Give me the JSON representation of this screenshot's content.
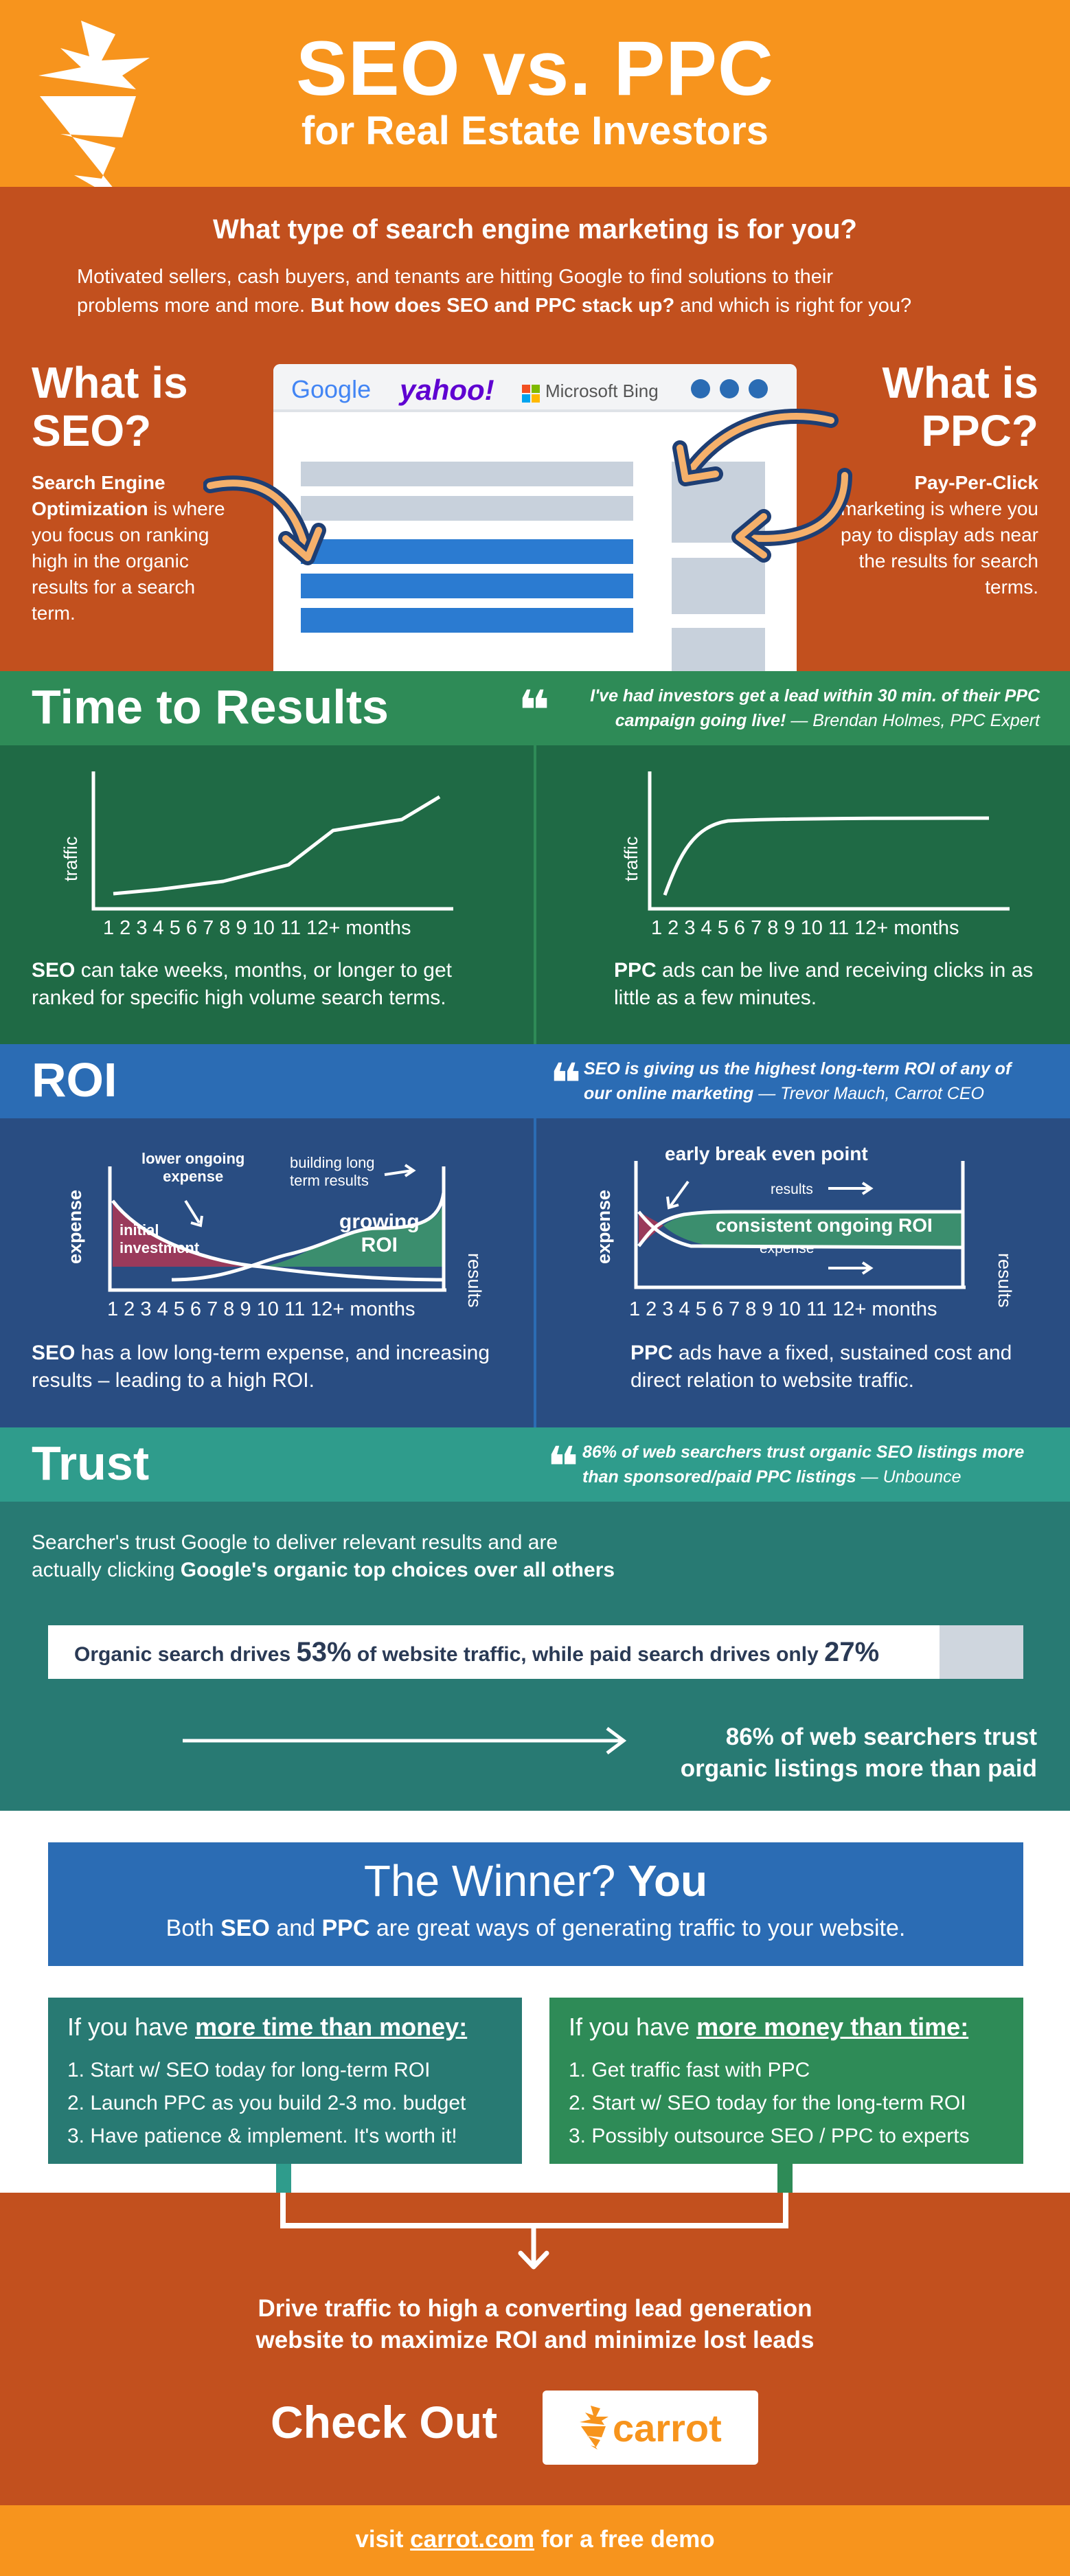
{
  "header": {
    "title": "SEO vs. PPC",
    "subtitle": "for Real Estate Investors"
  },
  "intro": {
    "question": "What type of search engine marketing is for you?",
    "body_line1": "Motivated sellers, cash buyers, and tenants are hitting Google to find solutions to their",
    "body_line2_a": "problems more and more. ",
    "body_line2_b": "But how does SEO and PPC stack up?",
    "body_line2_c": " and which is right for you?"
  },
  "seo_def": {
    "title_line1": "What is",
    "title_line2": "SEO?",
    "bold": "Search Engine Optimization",
    "text": " is where you focus on ranking high in the organic results for a search term."
  },
  "ppc_def": {
    "title_line1": "What is",
    "title_line2": "PPC?",
    "bold": "Pay-Per-Click",
    "text": " marketing is where you pay to display ads near the results for search terms."
  },
  "browser": {
    "engines": [
      "Google",
      "yahoo!",
      "Microsoft Bing"
    ]
  },
  "time": {
    "title": "Time to Results",
    "quote": "I've had investors get a lead within 30 min. of their PPC campaign going live!",
    "quote_author": "— Brendan Holmes, PPC Expert",
    "left": {
      "ylabel": "traffic",
      "ticks": "1 2 3 4 5 6 7 8 9 10 11 12+ months",
      "caption_bold": "SEO",
      "caption": " can take weeks, months, or longer to get ranked for specific high volume search terms."
    },
    "right": {
      "ylabel": "traffic",
      "ticks": "1 2 3 4 5 6 7 8 9 10 11 12+ months",
      "caption_bold": "PPC",
      "caption": " ads can be live and receiving clicks in as little as a few minutes."
    }
  },
  "roi": {
    "title": "ROI",
    "quote": "SEO is giving us the highest long-term ROI of any of our online marketing",
    "quote_author": "— Trevor Mauch, Carrot CEO",
    "left": {
      "ylabel": "expense",
      "y2label": "results",
      "ann_lower": [
        "lower ongoing",
        "expense"
      ],
      "ann_build": [
        "building long",
        "term results"
      ],
      "initial": [
        "initial",
        "investment"
      ],
      "growing": [
        "growing",
        "ROI"
      ],
      "ticks": "1 2 3 4 5 6 7 8 9 10 11 12+ months",
      "caption_bold": "SEO",
      "caption": " has a low long-term expense, and increasing results – leading to a high ROI."
    },
    "right": {
      "ylabel": "expense",
      "y2label": "results",
      "ann_break": "early break even point",
      "band": "consistent ongoing ROI",
      "results": "results",
      "expense": "expense",
      "ticks": "1 2 3 4 5 6 7 8 9 10 11 12+ months",
      "caption_bold": "PPC",
      "caption": " ads have a fixed, sustained cost and direct relation to website traffic."
    }
  },
  "trust": {
    "title": "Trust",
    "quote": "86% of web searchers trust organic SEO listings more than sponsored/paid PPC listings",
    "quote_author": "— Unbounce",
    "body_line1": "Searcher's trust Google to deliver relevant results and are",
    "body_line2_a": "actually clicking ",
    "body_line2_b": "Google's organic top choices over all others",
    "stat_a": "Organic search drives ",
    "stat_organic": "53%",
    "stat_b": " of website traffic, while paid search drives only ",
    "stat_paid": "27%",
    "organic_share": 0.53,
    "paid_share": 0.27,
    "arrow_text_line1": "86% of web searchers trust",
    "arrow_text_line2": "organic listings more than paid"
  },
  "winner": {
    "title_a": "The Winner? ",
    "title_b": "You",
    "sub_a": "Both ",
    "sub_seo": "SEO",
    "sub_and": " and ",
    "sub_ppc": "PPC",
    "sub_b": " are great ways of generating traffic to your website.",
    "time_option": {
      "head_a": "If you have ",
      "head_b": "more time than money:",
      "items": [
        "1. Start w/ SEO today for long-term ROI",
        "2. Launch PPC as you build 2-3 mo. budget",
        "3. Have patience & implement. It's worth it!"
      ]
    },
    "money_option": {
      "head_a": "If you have ",
      "head_b": "more money than time:",
      "items": [
        "1. Get traffic fast with PPC",
        "2. Start w/ SEO today for the long-term ROI",
        "3. Possibly outsource SEO / PPC to experts"
      ]
    }
  },
  "cta": {
    "line1": "Drive traffic to high a converting lead generation",
    "line2": "website to maximize ROI and minimize lost leads",
    "check_out": "Check Out",
    "logo_text": "carrot"
  },
  "footer": {
    "a": "visit ",
    "link": "carrot.com",
    "b": " for a free demo"
  },
  "colors": {
    "orange": "#f7941d",
    "rust": "#c2501e",
    "green_bar": "#2e8b57",
    "green_dark": "#1f6a45",
    "blue_bar": "#2b6cb4",
    "blue_dark": "#294d82",
    "teal_bar": "#2f9c8c",
    "teal_dark": "#287a73"
  },
  "icons": [
    "carrot-logo-icon",
    "quote-icon",
    "curved-arrow-icon",
    "arrow-right-icon",
    "arrow-down-icon"
  ]
}
